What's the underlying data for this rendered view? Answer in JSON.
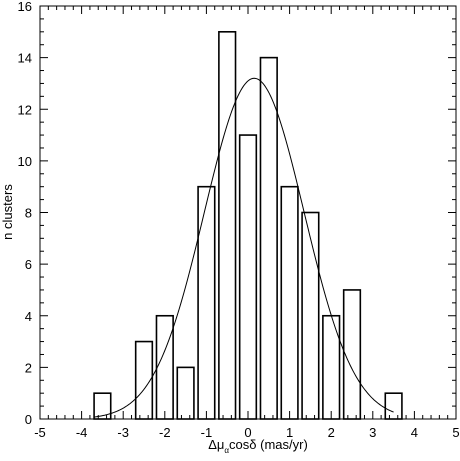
{
  "chart_data": {
    "type": "bar",
    "title": "",
    "xlabel": {
      "prefix": "Δμ",
      "sub1": "α",
      "middle": "cosδ",
      "suffix": " (mas/yr)"
    },
    "ylabel": "n clusters",
    "xlim": [
      -5,
      5
    ],
    "ylim": [
      0,
      16
    ],
    "xticks": [
      "-5",
      "-4",
      "-3",
      "-2",
      "-1",
      "0",
      "1",
      "2",
      "3",
      "4",
      "5"
    ],
    "yticks": [
      "0",
      "2",
      "4",
      "6",
      "8",
      "10",
      "12",
      "14",
      "16"
    ],
    "bin_width": 0.5,
    "bar_fill_fraction": 0.8,
    "bins": [
      {
        "x": -3.5,
        "value": 1
      },
      {
        "x": -2.5,
        "value": 3
      },
      {
        "x": -2.0,
        "value": 4
      },
      {
        "x": -1.5,
        "value": 2
      },
      {
        "x": -1.0,
        "value": 9
      },
      {
        "x": -0.5,
        "value": 15
      },
      {
        "x": 0.0,
        "value": 11
      },
      {
        "x": 0.5,
        "value": 14
      },
      {
        "x": 1.0,
        "value": 9
      },
      {
        "x": 1.5,
        "value": 8
      },
      {
        "x": 2.0,
        "value": 4
      },
      {
        "x": 2.5,
        "value": 5
      },
      {
        "x": 3.5,
        "value": 1
      }
    ],
    "fit": {
      "type": "gaussian",
      "amplitude": 13.2,
      "mean": 0.15,
      "sigma": 1.2,
      "xrange": [
        -3.7,
        3.5
      ]
    },
    "grid": false,
    "bar_style": "outline",
    "line_color": "#000000"
  }
}
